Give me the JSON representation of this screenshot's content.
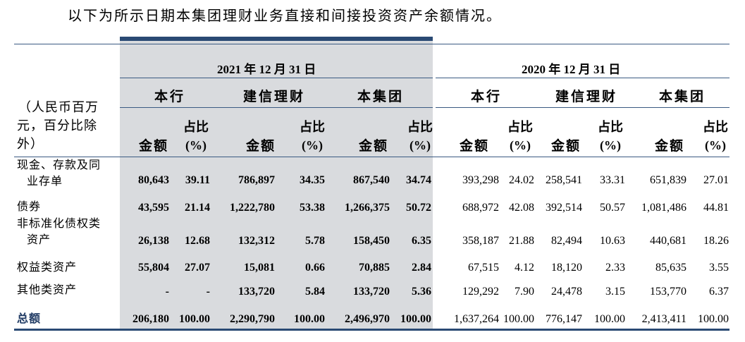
{
  "intro": "以下为所示日期本集团理财业务直接和间接投资资产余额情况。",
  "header": {
    "date_2021": "2021 年 12 月 31 日",
    "date_2020": "2020 年 12 月 31 日",
    "unit_line1": "（人民币百万",
    "unit_line2": "元，百分比除",
    "unit_line3": "外）",
    "groups_2021": [
      "本行",
      "建信理财",
      "本集团"
    ],
    "groups_2020": [
      "本行",
      "建信理财",
      "本集团"
    ],
    "amount_label": "金额",
    "pct_label_line1": "占比",
    "pct_label_line2": "(%)"
  },
  "rows": [
    {
      "label_line1": "现金、存款及同",
      "label_line2": "业存单",
      "values": [
        "80,643",
        "39.11",
        "786,897",
        "34.35",
        "867,540",
        "34.74",
        "393,298",
        "24.02",
        "258,541",
        "33.31",
        "651,839",
        "27.01"
      ]
    },
    {
      "label_line1": "债券",
      "label_line2": "",
      "values": [
        "43,595",
        "21.14",
        "1,222,780",
        "53.38",
        "1,266,375",
        "50.72",
        "688,972",
        "42.08",
        "392,514",
        "50.57",
        "1,081,486",
        "44.81"
      ]
    },
    {
      "label_line1": "非标准化债权类",
      "label_line2": "资产",
      "values": [
        "26,138",
        "12.68",
        "132,312",
        "5.78",
        "158,450",
        "6.35",
        "358,187",
        "21.88",
        "82,494",
        "10.63",
        "440,681",
        "18.26"
      ]
    },
    {
      "label_line1": "权益类资产",
      "label_line2": "",
      "values": [
        "55,804",
        "27.07",
        "15,081",
        "0.66",
        "70,885",
        "2.84",
        "67,515",
        "4.12",
        "18,120",
        "2.33",
        "85,635",
        "3.55"
      ]
    },
    {
      "label_line1": "其他类资产",
      "label_line2": "",
      "values": [
        "-",
        "-",
        "133,720",
        "5.84",
        "133,720",
        "5.36",
        "129,292",
        "7.90",
        "24,478",
        "3.15",
        "153,770",
        "6.37"
      ]
    },
    {
      "label_line1": "总额",
      "label_line2": "",
      "values": [
        "206,180",
        "100.00",
        "2,290,790",
        "100.00",
        "2,496,970",
        "100.00",
        "1,637,264",
        "100.00",
        "776,147",
        "100.00",
        "2,413,411",
        "100.00"
      ]
    }
  ]
}
